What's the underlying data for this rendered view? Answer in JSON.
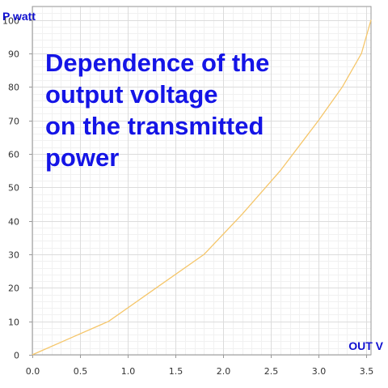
{
  "chart_data": {
    "type": "line",
    "title_lines": [
      "Dependence of the",
      "output voltage",
      "on the transmitted",
      "power"
    ],
    "xlabel": "OUT V",
    "ylabel": "P watt",
    "xlim": [
      0,
      3.55
    ],
    "ylim": [
      0,
      104
    ],
    "xticks": [
      "0.0",
      "0.5",
      "1.0",
      "1.5",
      "2.0",
      "2.5",
      "3.0",
      "3.5"
    ],
    "yticks": [
      "0",
      "10",
      "20",
      "30",
      "40",
      "50",
      "60",
      "70",
      "80",
      "90",
      "100"
    ],
    "grid": true,
    "series": [
      {
        "color": "#f5c66a",
        "x": [
          0,
          0.4,
          0.8,
          1.3,
          1.8,
          2.2,
          2.6,
          3.0,
          3.25,
          3.45,
          3.55
        ],
        "y": [
          0,
          5,
          10,
          20,
          30,
          42,
          55,
          70,
          80,
          90,
          100
        ]
      }
    ]
  }
}
